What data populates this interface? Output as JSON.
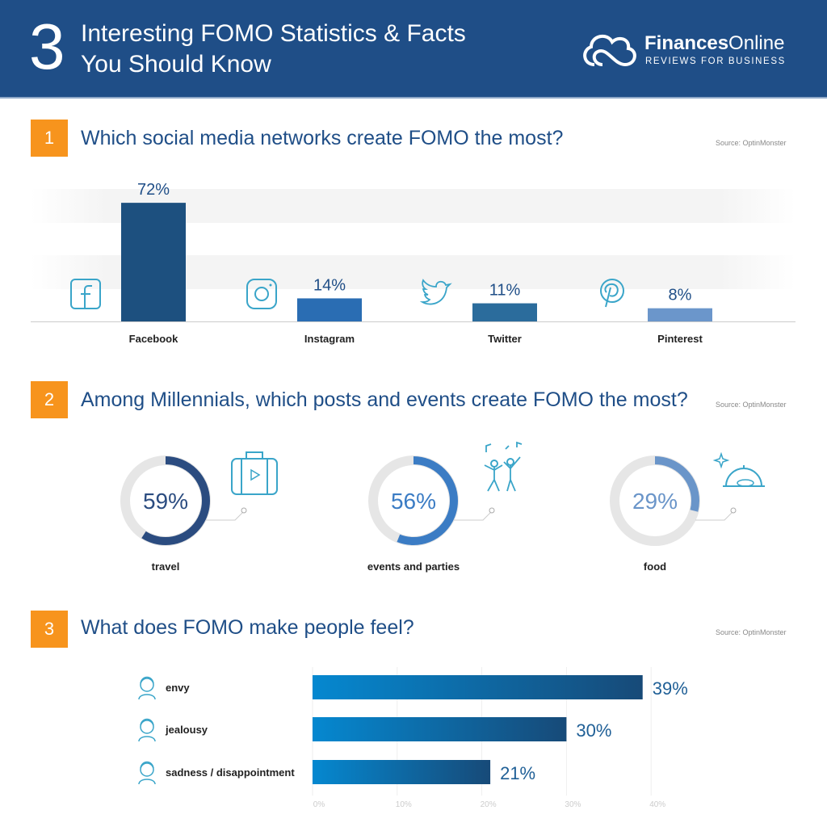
{
  "header": {
    "number": "3",
    "title_line1": "Interesting FOMO Statistics & Facts",
    "title_line2": "You Should Know",
    "logo_bold": "Finances",
    "logo_light": "Online",
    "logo_sub": "REVIEWS FOR BUSINESS"
  },
  "sections": [
    {
      "number": "1",
      "title": "Which social media networks create FOMO the most?",
      "source": "Source: OptinMonster"
    },
    {
      "number": "2",
      "title": "Among Millennials, which posts and events create FOMO the most?",
      "source": "Source: OptinMonster"
    },
    {
      "number": "3",
      "title": "What does FOMO make people feel?",
      "source": "Source: OptinMonster"
    }
  ],
  "chart_data": [
    {
      "type": "bar",
      "title": "Which social media networks create FOMO the most?",
      "categories": [
        "Facebook",
        "Instagram",
        "Twitter",
        "Pinterest"
      ],
      "values": [
        72,
        14,
        11,
        8
      ],
      "value_labels": [
        "72%",
        "14%",
        "11%",
        "8%"
      ],
      "icons": [
        "facebook-icon",
        "instagram-icon",
        "twitter-icon",
        "pinterest-icon"
      ],
      "colors": [
        "#1d507f",
        "#2a6db3",
        "#2b6c9c",
        "#6b96cb"
      ],
      "ylim": [
        0,
        80
      ]
    },
    {
      "type": "pie",
      "title": "Among Millennials, which posts and events create FOMO the most?",
      "categories": [
        "travel",
        "events and parties",
        "food"
      ],
      "values": [
        59,
        56,
        29
      ],
      "value_labels": [
        "59%",
        "56%",
        "29%"
      ],
      "icons": [
        "suitcase-icon",
        "dancing-people-icon",
        "food-cloche-icon"
      ],
      "colors": [
        "#2b4c80",
        "#3b7cc4",
        "#6a95c9"
      ]
    },
    {
      "type": "bar",
      "orientation": "horizontal",
      "title": "What does FOMO make people feel?",
      "categories": [
        "envy",
        "jealousy",
        "sadness / disappointment"
      ],
      "values": [
        39,
        30,
        21
      ],
      "value_labels": [
        "39%",
        "30%",
        "21%"
      ],
      "xticks": [
        "0%",
        "10%",
        "20%",
        "30%",
        "40%"
      ],
      "xlim": [
        0,
        40
      ]
    }
  ]
}
